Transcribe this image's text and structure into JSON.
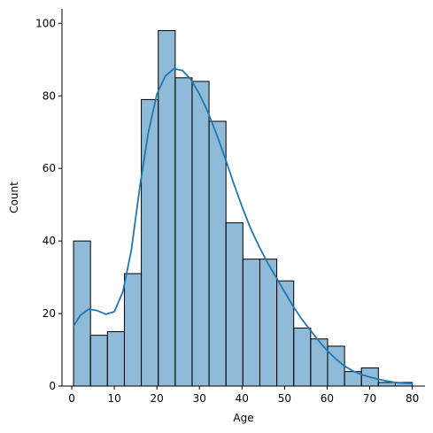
{
  "chart_data": {
    "type": "bar",
    "subtype": "histogram-with-kde",
    "title": "",
    "xlabel": "Age",
    "ylabel": "Count",
    "xlim": [
      -2.3,
      83.0
    ],
    "ylim": [
      0,
      104
    ],
    "x_ticks": [
      0,
      10,
      20,
      30,
      40,
      50,
      60,
      70,
      80
    ],
    "y_ticks": [
      0,
      20,
      40,
      60,
      80,
      100
    ],
    "bins": {
      "edges": [
        0.42,
        4.4,
        8.38,
        12.36,
        16.34,
        20.32,
        24.3,
        28.27,
        32.25,
        36.23,
        40.21,
        44.19,
        48.17,
        52.15,
        56.13,
        60.11,
        64.09,
        68.06,
        72.04,
        76.02,
        80.0
      ],
      "counts": [
        40,
        14,
        15,
        31,
        79,
        98,
        85,
        84,
        73,
        45,
        35,
        35,
        29,
        16,
        13,
        11,
        4,
        5,
        1,
        1
      ]
    },
    "kde": {
      "x": [
        0.42,
        2,
        4,
        6,
        8,
        10,
        12,
        14,
        16,
        18,
        20,
        22,
        24,
        26,
        28,
        30,
        32,
        34,
        36,
        38,
        40,
        42,
        44,
        46,
        48,
        50,
        52,
        54,
        56,
        58,
        60,
        62,
        64,
        66,
        68,
        70,
        72,
        74,
        76,
        78,
        80
      ],
      "y": [
        16.5,
        19.5,
        21.2,
        20.8,
        19.8,
        20.5,
        26,
        37.5,
        55,
        70,
        80.5,
        85.5,
        87.5,
        87,
        84.5,
        80.5,
        75.5,
        69.5,
        63,
        56,
        49.5,
        43.5,
        38.5,
        34,
        30,
        26,
        22,
        18.5,
        15.5,
        12.5,
        9.8,
        7.5,
        5.6,
        4.2,
        3.2,
        2.5,
        1.9,
        1.4,
        1.0,
        0.8,
        0.7
      ]
    },
    "colors": {
      "bar_fill": "#1f77b4",
      "bar_fill_opacity": 0.5,
      "bar_edge": "#000000",
      "kde_line": "#1f77b4",
      "axis": "#000000"
    },
    "grid": false,
    "legend": "none"
  }
}
